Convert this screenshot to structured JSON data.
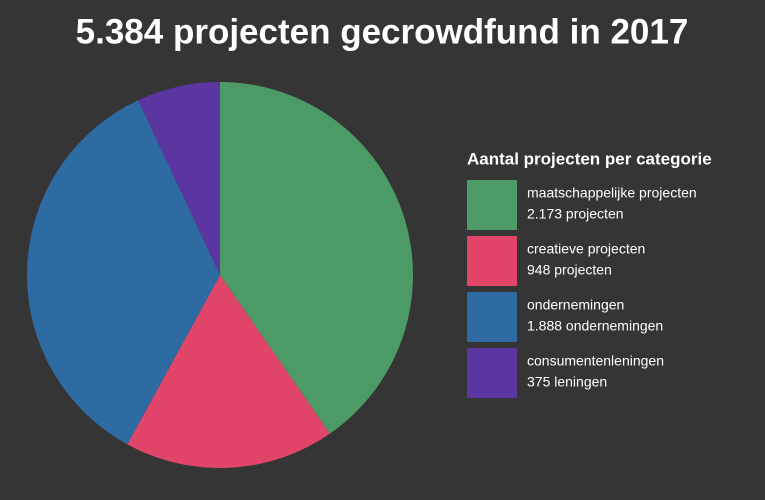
{
  "chart_data": {
    "type": "pie",
    "title": "5.384 projecten gecrowdfund in 2017",
    "legend_title": "Aantal projecten per categorie",
    "categories": [
      "maatschappelijke projecten",
      "creatieve projecten",
      "ondernemingen",
      "consumentenleningen"
    ],
    "values": [
      2173,
      948,
      1888,
      375
    ],
    "value_labels": [
      "2.173 projecten",
      "948 projecten",
      "1.888 ondernemingen",
      "375 leningen"
    ],
    "colors": [
      "#4c9a66",
      "#e2456a",
      "#2d6ba2",
      "#5b35a0"
    ],
    "legend_position": "right"
  }
}
